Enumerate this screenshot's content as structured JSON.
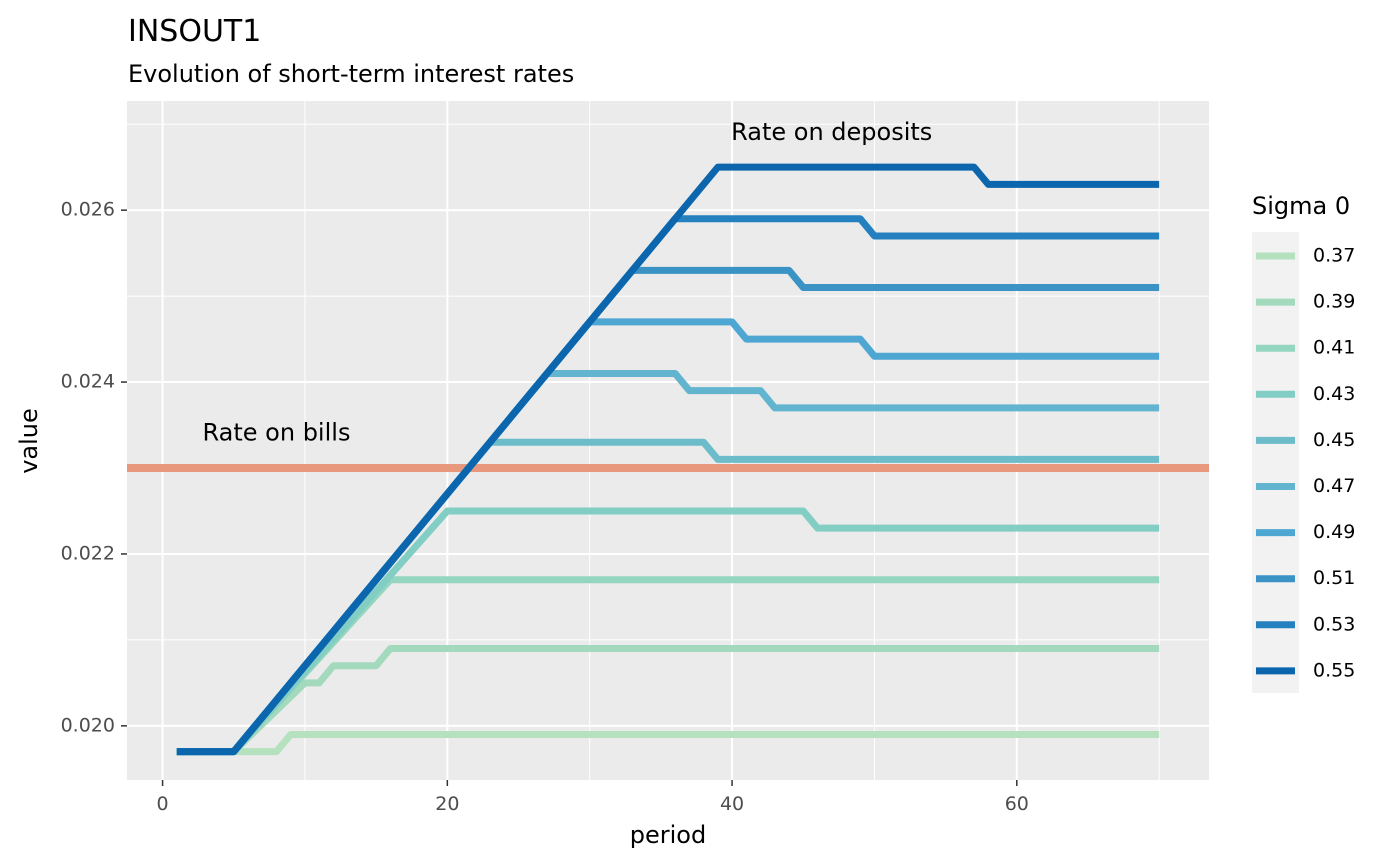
{
  "chart_data": {
    "type": "line",
    "title": "INSOUT1",
    "subtitle": "Evolution of short-term interest rates",
    "xlabel": "period",
    "ylabel": "value",
    "xlim": [
      -2.5,
      73.5
    ],
    "ylim": [
      0.01937,
      0.02727
    ],
    "x_ticks": [
      0,
      20,
      40,
      60
    ],
    "x_tick_labels": [
      "0",
      "20",
      "40",
      "60"
    ],
    "y_ticks": [
      0.02,
      0.022,
      0.024,
      0.026
    ],
    "y_tick_labels": [
      "0.020",
      "0.022",
      "0.024",
      "0.026"
    ],
    "grid": true,
    "legend": {
      "title": "Sigma 0",
      "position": "right"
    },
    "reference_lines": [
      {
        "label": "Rate on bills",
        "y": 0.023,
        "color": "#e8987c"
      }
    ],
    "annotations": [
      {
        "text": "Rate on deposits",
        "x": 47,
        "y": 0.0269
      },
      {
        "text": "Rate on bills",
        "x": 8,
        "y": 0.0234
      }
    ],
    "series": [
      {
        "name": "0.37",
        "color": "#b5e1bf",
        "points": [
          [
            1,
            0.0197
          ],
          [
            6,
            0.0197
          ],
          [
            8,
            0.0197
          ],
          [
            9,
            0.0199
          ],
          [
            70,
            0.0199
          ]
        ]
      },
      {
        "name": "0.39",
        "color": "#a3dabd",
        "points": [
          [
            1,
            0.0197
          ],
          [
            5,
            0.0197
          ],
          [
            10,
            0.0205
          ],
          [
            11,
            0.0205
          ],
          [
            12,
            0.0207
          ],
          [
            15,
            0.0207
          ],
          [
            16,
            0.0209
          ],
          [
            70,
            0.0209
          ]
        ]
      },
      {
        "name": "0.41",
        "color": "#94d6c0",
        "points": [
          [
            1,
            0.0197
          ],
          [
            5,
            0.0197
          ],
          [
            16,
            0.0217
          ],
          [
            70,
            0.0217
          ]
        ]
      },
      {
        "name": "0.43",
        "color": "#83cec4",
        "points": [
          [
            1,
            0.0197
          ],
          [
            5,
            0.0197
          ],
          [
            20,
            0.0225
          ],
          [
            45,
            0.0225
          ],
          [
            46,
            0.0223
          ],
          [
            70,
            0.0223
          ]
        ]
      },
      {
        "name": "0.45",
        "color": "#6cbcca",
        "points": [
          [
            1,
            0.0197
          ],
          [
            5,
            0.0197
          ],
          [
            23,
            0.0233
          ],
          [
            38,
            0.0233
          ],
          [
            39,
            0.0231
          ],
          [
            70,
            0.0231
          ]
        ]
      },
      {
        "name": "0.47",
        "color": "#63b5cf",
        "points": [
          [
            1,
            0.0197
          ],
          [
            5,
            0.0197
          ],
          [
            27,
            0.0241
          ],
          [
            36,
            0.0241
          ],
          [
            37,
            0.0239
          ],
          [
            42,
            0.0239
          ],
          [
            43,
            0.0237
          ],
          [
            70,
            0.0237
          ]
        ]
      },
      {
        "name": "0.49",
        "color": "#4ea6d2",
        "points": [
          [
            1,
            0.0197
          ],
          [
            5,
            0.0197
          ],
          [
            30,
            0.0247
          ],
          [
            40,
            0.0247
          ],
          [
            41,
            0.0245
          ],
          [
            49,
            0.0245
          ],
          [
            50,
            0.0243
          ],
          [
            70,
            0.0243
          ]
        ]
      },
      {
        "name": "0.51",
        "color": "#3a92c5",
        "points": [
          [
            1,
            0.0197
          ],
          [
            5,
            0.0197
          ],
          [
            33,
            0.0253
          ],
          [
            44,
            0.0253
          ],
          [
            45,
            0.0251
          ],
          [
            70,
            0.0251
          ]
        ]
      },
      {
        "name": "0.53",
        "color": "#2580bf",
        "points": [
          [
            1,
            0.0197
          ],
          [
            5,
            0.0197
          ],
          [
            36,
            0.0259
          ],
          [
            49,
            0.0259
          ],
          [
            50,
            0.0257
          ],
          [
            70,
            0.0257
          ]
        ]
      },
      {
        "name": "0.55",
        "color": "#0c66ad",
        "points": [
          [
            1,
            0.0197
          ],
          [
            5,
            0.0197
          ],
          [
            39,
            0.0265
          ],
          [
            57,
            0.0265
          ],
          [
            58,
            0.0263
          ],
          [
            70,
            0.0263
          ]
        ]
      }
    ]
  }
}
